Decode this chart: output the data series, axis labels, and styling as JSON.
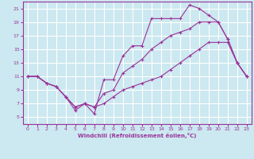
{
  "background_color": "#cce8f0",
  "grid_color": "#ffffff",
  "line_color": "#993399",
  "xlabel": "Windchill (Refroidissement éolien,°C)",
  "xlim": [
    -0.5,
    23.5
  ],
  "ylim": [
    4,
    22
  ],
  "yticks": [
    5,
    7,
    9,
    11,
    13,
    15,
    17,
    19,
    21
  ],
  "xticks": [
    0,
    1,
    2,
    3,
    4,
    5,
    6,
    7,
    8,
    9,
    10,
    11,
    12,
    13,
    14,
    15,
    16,
    17,
    18,
    19,
    20,
    21,
    22,
    23
  ],
  "series": [
    {
      "x": [
        0,
        1,
        2,
        3,
        4,
        5,
        6,
        7,
        8,
        9,
        10,
        11,
        12,
        13,
        14,
        15,
        16,
        17,
        18,
        19,
        20,
        21,
        22,
        23
      ],
      "y": [
        11,
        11,
        10,
        9.5,
        8,
        6,
        7,
        5.5,
        10.5,
        10.5,
        14,
        15.5,
        15.5,
        19.5,
        19.5,
        19.5,
        19.5,
        21.5,
        21,
        20,
        19,
        16.5,
        13,
        11
      ]
    },
    {
      "x": [
        0,
        1,
        2,
        3,
        4,
        5,
        6,
        7,
        8,
        9,
        10,
        11,
        12,
        13,
        14,
        15,
        16,
        17,
        18,
        19,
        20,
        21,
        22,
        23
      ],
      "y": [
        11,
        11,
        10,
        9.5,
        8,
        6.5,
        7,
        6.5,
        8.5,
        9,
        11.5,
        12.5,
        13.5,
        15,
        16,
        17,
        17.5,
        18,
        19,
        19,
        19,
        16.5,
        13,
        11
      ]
    },
    {
      "x": [
        0,
        1,
        2,
        3,
        4,
        5,
        6,
        7,
        8,
        9,
        10,
        11,
        12,
        13,
        14,
        15,
        16,
        17,
        18,
        19,
        20,
        21,
        22,
        23
      ],
      "y": [
        11,
        11,
        10,
        9.5,
        8,
        6.5,
        7,
        6.5,
        7,
        8,
        9,
        9.5,
        10,
        10.5,
        11,
        12,
        13,
        14,
        15,
        16,
        16,
        16,
        13,
        11
      ]
    }
  ]
}
